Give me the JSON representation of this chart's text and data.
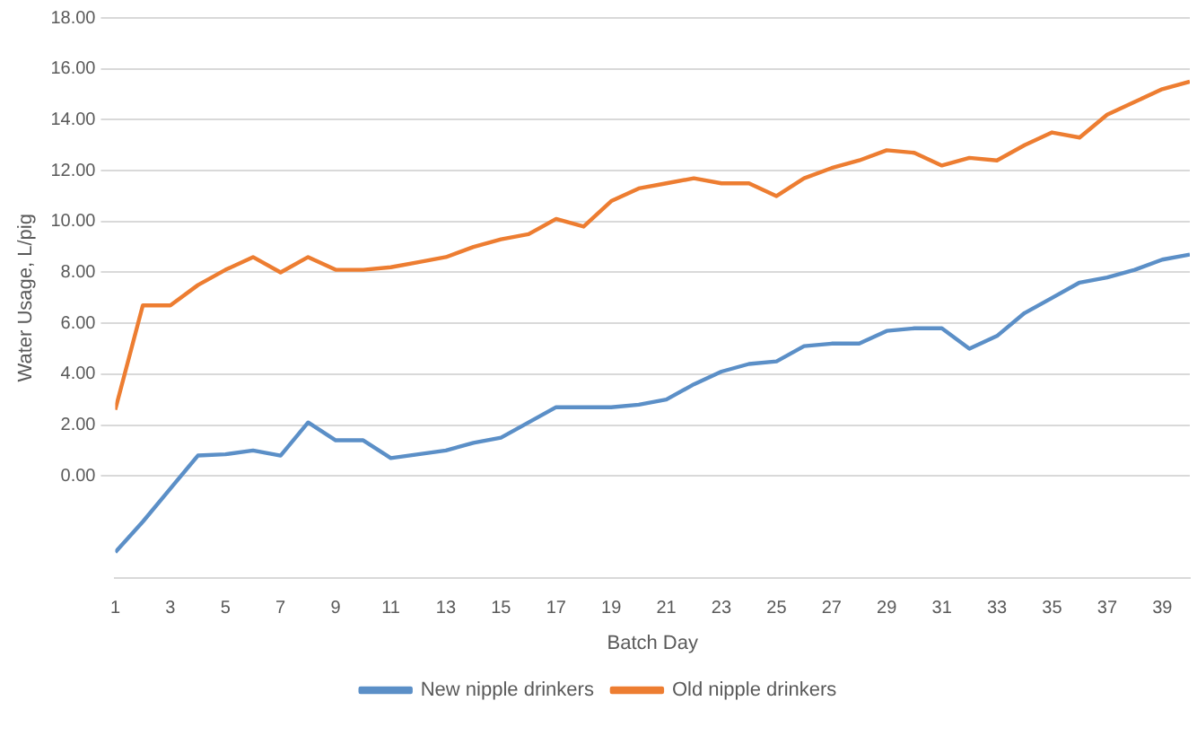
{
  "chart_data": {
    "type": "line",
    "xlabel": "Batch Day",
    "ylabel": "Water Usage, L/pig",
    "x": [
      1,
      2,
      3,
      4,
      5,
      6,
      7,
      8,
      9,
      10,
      11,
      12,
      13,
      14,
      15,
      16,
      17,
      18,
      19,
      20,
      21,
      22,
      23,
      24,
      25,
      26,
      27,
      28,
      29,
      30,
      31,
      32,
      33,
      34,
      35,
      36,
      37,
      38,
      39,
      40
    ],
    "xlim": [
      1,
      40
    ],
    "xticks": [
      1,
      3,
      5,
      7,
      9,
      11,
      13,
      15,
      17,
      19,
      21,
      23,
      25,
      27,
      29,
      31,
      33,
      35,
      37,
      39
    ],
    "series": [
      {
        "name": "New nipple drinkers",
        "color": "#5b8fc7",
        "values": [
          -3.0,
          -1.8,
          -0.5,
          0.8,
          0.85,
          1.0,
          0.8,
          2.1,
          1.4,
          1.4,
          0.7,
          0.85,
          1.0,
          1.3,
          1.5,
          2.1,
          2.7,
          2.7,
          2.7,
          2.8,
          3.0,
          3.6,
          4.1,
          4.4,
          4.5,
          5.1,
          5.2,
          5.2,
          5.7,
          5.8,
          5.8,
          5.0,
          5.5,
          6.4,
          7.0,
          7.6,
          7.8,
          8.1,
          8.5,
          8.7
        ]
      },
      {
        "name": "Old nipple drinkers",
        "color": "#ed7d31",
        "values": [
          2.6,
          6.7,
          6.7,
          7.5,
          8.1,
          8.6,
          8.0,
          8.6,
          8.1,
          8.1,
          8.2,
          8.4,
          8.6,
          9.0,
          9.3,
          9.5,
          10.1,
          9.8,
          10.8,
          11.3,
          11.5,
          11.7,
          11.5,
          11.5,
          11.0,
          11.7,
          12.1,
          12.4,
          12.8,
          12.7,
          12.2,
          12.5,
          12.4,
          13.0,
          13.5,
          13.3,
          14.2,
          14.7,
          15.2,
          15.5
        ]
      }
    ],
    "ylim": [
      -4,
      18
    ],
    "yticks": [
      {
        "value": 0,
        "label": "0.00"
      },
      {
        "value": 2,
        "label": "2.00"
      },
      {
        "value": 4,
        "label": "4.00"
      },
      {
        "value": 6,
        "label": "6.00"
      },
      {
        "value": 8,
        "label": "8.00"
      },
      {
        "value": 10,
        "label": "10.00"
      },
      {
        "value": 12,
        "label": "12.00"
      },
      {
        "value": 14,
        "label": "14.00"
      },
      {
        "value": 16,
        "label": "16.00"
      },
      {
        "value": 18,
        "label": "18.00"
      }
    ],
    "grid": "y",
    "legend": "bottom",
    "marker": "none",
    "line_style": "solid"
  }
}
